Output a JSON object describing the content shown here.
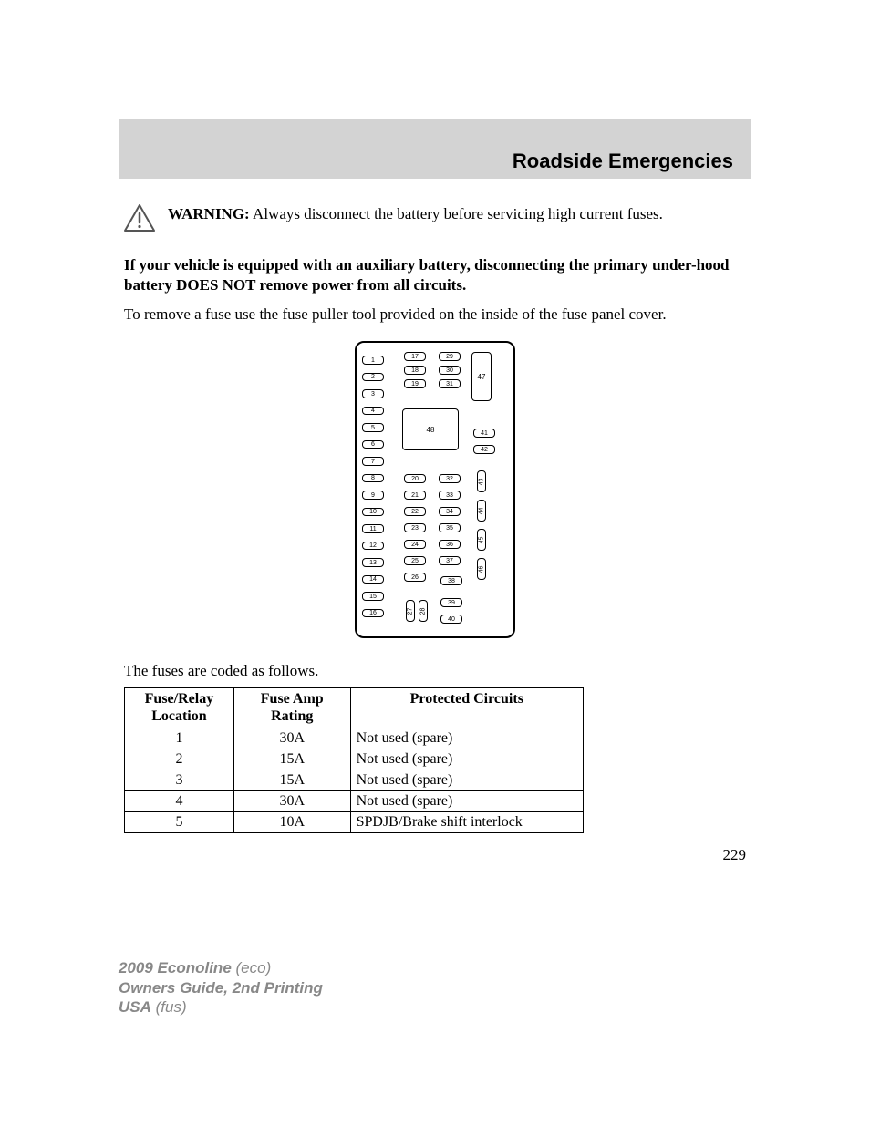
{
  "header": {
    "title": "Roadside Emergencies"
  },
  "warning": {
    "label": "WARNING:",
    "text": " Always disconnect the battery before servicing high current fuses."
  },
  "aux_battery_note": "If your vehicle is equipped with an auxiliary battery, disconnecting the primary under-hood battery DOES NOT remove power from all circuits.",
  "remove_fuse_text": "To remove a fuse use the fuse puller tool provided on the inside of the fuse panel cover.",
  "diagram": {
    "col1": [
      "1",
      "2",
      "3",
      "4",
      "5",
      "6",
      "7",
      "8",
      "9",
      "10",
      "11",
      "12",
      "13",
      "14",
      "15",
      "16"
    ],
    "col2a": [
      "17",
      "18",
      "19"
    ],
    "col2b": [
      "20",
      "21",
      "22",
      "23",
      "24",
      "25",
      "26"
    ],
    "col2v": [
      "27",
      "28"
    ],
    "col3a": [
      "29",
      "30",
      "31"
    ],
    "col3b": [
      "32",
      "33",
      "34",
      "35",
      "36",
      "37"
    ],
    "col3c": [
      "38"
    ],
    "col3d": [
      "39",
      "40"
    ],
    "col4_top": [
      "41",
      "42"
    ],
    "col4_v": [
      "43",
      "44",
      "45",
      "46"
    ],
    "big47": "47",
    "big48": "48"
  },
  "caption": "The fuses are coded as follows.",
  "table": {
    "headers": [
      "Fuse/Relay Location",
      "Fuse Amp Rating",
      "Protected Circuits"
    ],
    "rows": [
      [
        "1",
        "30A",
        "Not used (spare)"
      ],
      [
        "2",
        "15A",
        "Not used (spare)"
      ],
      [
        "3",
        "15A",
        "Not used (spare)"
      ],
      [
        "4",
        "30A",
        "Not used (spare)"
      ],
      [
        "5",
        "10A",
        "SPDJB/Brake shift interlock"
      ]
    ],
    "col_widths": [
      "120px",
      "128px",
      "256px"
    ]
  },
  "page_number": "229",
  "footer": {
    "line1a": "2009 Econoline",
    "line1b": " (eco)",
    "line2": "Owners Guide, 2nd Printing",
    "line3a": "USA",
    "line3b": " (fus)"
  },
  "colors": {
    "header_bg": "#d3d3d3",
    "footer_text": "#888888",
    "text": "#000000",
    "bg": "#ffffff"
  }
}
